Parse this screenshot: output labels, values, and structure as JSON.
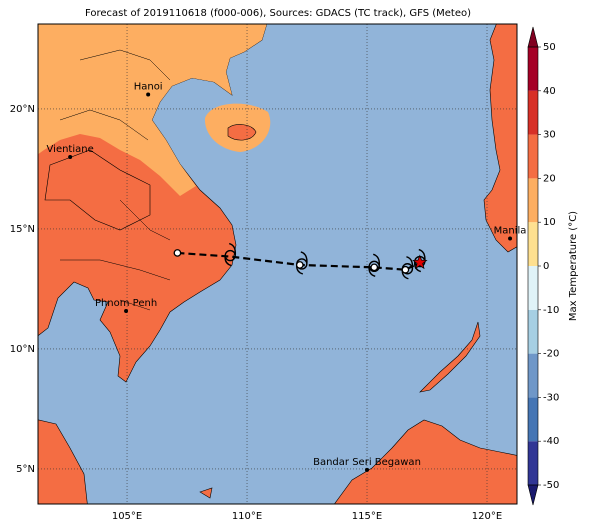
{
  "header": {
    "title": "Forecast of 2019110618 (f000-006), Sources: GDACS (TC track), GFS (Meteo)"
  },
  "map": {
    "lon_range": [
      101.29,
      121.25
    ],
    "lat_range": [
      3.54,
      23.54
    ],
    "grid": true,
    "lon_ticks": [
      {
        "value": 105,
        "label": "105°E"
      },
      {
        "value": 110,
        "label": "110°E"
      },
      {
        "value": 115,
        "label": "115°E"
      },
      {
        "value": 120,
        "label": "120°E"
      }
    ],
    "lat_ticks": [
      {
        "value": 5,
        "label": "5°N"
      },
      {
        "value": 10,
        "label": "10°N"
      },
      {
        "value": 15,
        "label": "15°N"
      },
      {
        "value": 20,
        "label": "20°N"
      }
    ],
    "cities": [
      {
        "name": "Hanoi",
        "lon": 105.88,
        "lat": 20.6
      },
      {
        "name": "Vientiane",
        "lon": 102.63,
        "lat": 18.0
      },
      {
        "name": "Phnom Penh",
        "lon": 104.96,
        "lat": 11.58
      },
      {
        "name": "Manila",
        "lon": 120.96,
        "lat": 14.6
      },
      {
        "name": "Bandar Seri Begawan",
        "lon": 115.0,
        "lat": 4.96
      }
    ],
    "track": {
      "lon": [
        107.1,
        109.3,
        112.2,
        115.3,
        116.6,
        117.2
      ],
      "lat": [
        14.0,
        13.85,
        13.5,
        13.4,
        13.3,
        13.6
      ]
    }
  },
  "colorbar": {
    "label": "Max Temperature (°C)",
    "levels": [
      -50,
      -40,
      -30,
      -20,
      -10,
      0,
      10,
      20,
      30,
      40,
      50
    ],
    "colors": [
      "#313695",
      "#4575b4",
      "#6f97c8",
      "#a6cfe3",
      "#e0f3f8",
      "#fee090",
      "#fdae61",
      "#f46d43",
      "#d73027",
      "#a50026"
    ],
    "ticks": [
      -50,
      -40,
      -30,
      -20,
      -10,
      0,
      10,
      20,
      30,
      40,
      50
    ]
  }
}
